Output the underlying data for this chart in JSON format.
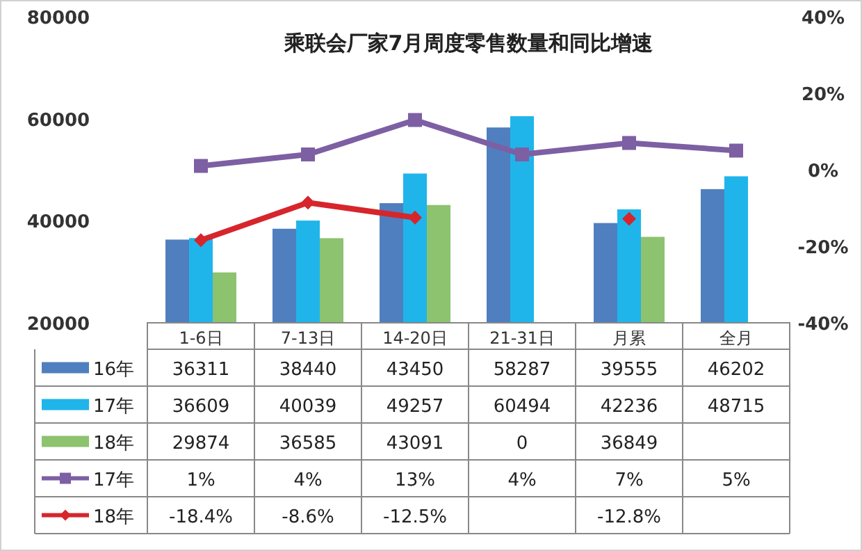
{
  "chart_data": {
    "type": "bar",
    "title": "乘联会厂家7月周度零售数量和同比增速",
    "categories": [
      "1-6日",
      "7-13日",
      "14-20日",
      "21-31日",
      "月累",
      "全月"
    ],
    "series": [
      {
        "name": "16年",
        "color": "#4f7fbe",
        "values": [
          36311,
          38440,
          43450,
          58287,
          39555,
          46202
        ],
        "value_labels": [
          "36311",
          "38440",
          "43450",
          "58287",
          "39555",
          "46202"
        ]
      },
      {
        "name": "17年",
        "color": "#1fb5ea",
        "values": [
          36609,
          40039,
          49257,
          60494,
          42236,
          48715
        ],
        "value_labels": [
          "36609",
          "40039",
          "49257",
          "60494",
          "42236",
          "48715"
        ]
      },
      {
        "name": "18年",
        "color": "#8dc26f",
        "values": [
          29874,
          36585,
          43091,
          null,
          36849,
          null
        ],
        "value_labels": [
          "29874",
          "36585",
          "43091",
          "0",
          "36849",
          null
        ]
      },
      {
        "name": "17年",
        "type": "line",
        "axis": "y2",
        "color": "#7d5fa3",
        "marker": "square",
        "values": [
          1,
          4,
          13,
          4,
          7,
          5
        ],
        "value_labels": [
          "1%",
          "4%",
          "13%",
          "4%",
          "7%",
          "5%"
        ]
      },
      {
        "name": "18年",
        "type": "line",
        "axis": "y2",
        "color": "#d7252c",
        "marker": "diamond",
        "values": [
          -18.4,
          -8.6,
          -12.5,
          null,
          -12.8,
          null
        ],
        "value_labels": [
          "-18.4%",
          "-8.6%",
          "-12.5%",
          null,
          "-12.8%",
          null
        ]
      }
    ],
    "ylim": [
      20000,
      80000
    ],
    "yticks": [
      20000,
      40000,
      60000,
      80000
    ],
    "y2lim": [
      -40,
      40
    ],
    "y2ticks": [
      {
        "value": -40,
        "label": "-40%"
      },
      {
        "value": -20,
        "label": "-20%"
      },
      {
        "value": 0,
        "label": "0%"
      },
      {
        "value": 20,
        "label": "20%"
      },
      {
        "value": 40,
        "label": "40%"
      }
    ],
    "legend": "bottom left"
  }
}
